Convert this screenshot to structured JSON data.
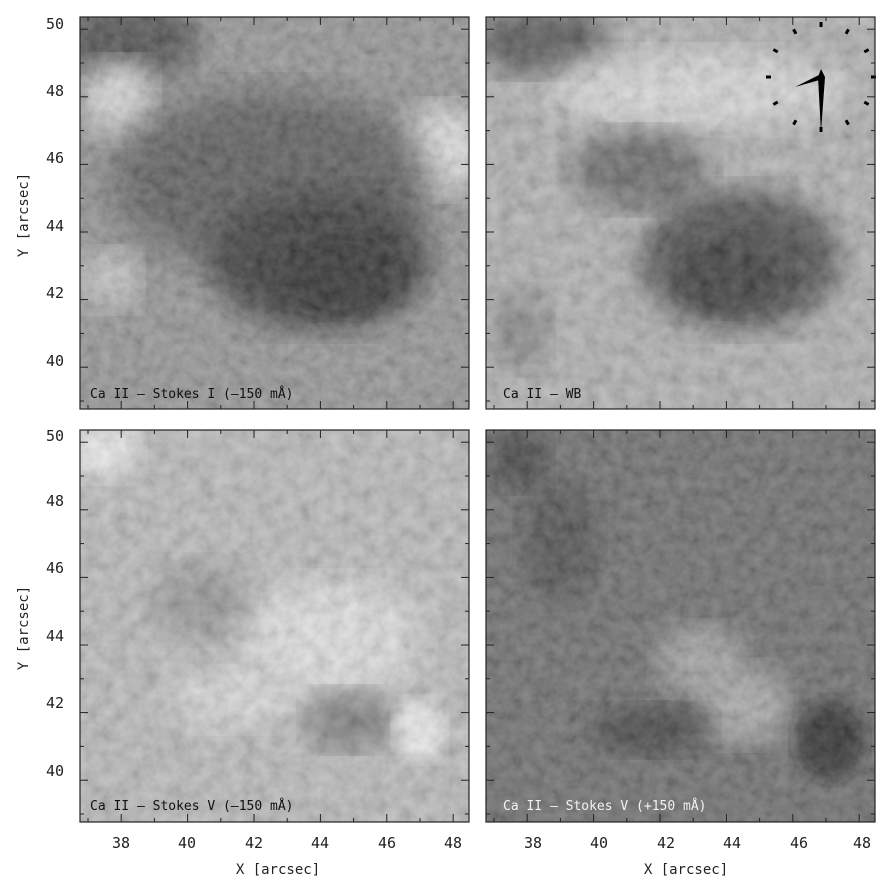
{
  "figure": {
    "panels": [
      {
        "id": "ca-stokes-i",
        "label": "Ca II – Stokes I (–150 mÅ)",
        "label_color": "#111111"
      },
      {
        "id": "ca-wb",
        "label": "Ca II – WB",
        "label_color": "#111111"
      },
      {
        "id": "ca-stokes-v-minus",
        "label": "Ca II – Stokes V (–150 mÅ)",
        "label_color": "#111111"
      },
      {
        "id": "ca-stokes-v-plus",
        "label": "Ca II – Stokes V (+150 mÅ)",
        "label_color": "#f2f2f2"
      }
    ],
    "x_axis": {
      "label": "X [arcsec]",
      "ticks": [
        "38",
        "40",
        "42",
        "44",
        "46",
        "48"
      ]
    },
    "y_axis": {
      "label": "Y [arcsec]",
      "ticks": [
        "40",
        "42",
        "44",
        "46",
        "48",
        "50"
      ]
    },
    "compass_icon": "clock-compass-icon"
  }
}
